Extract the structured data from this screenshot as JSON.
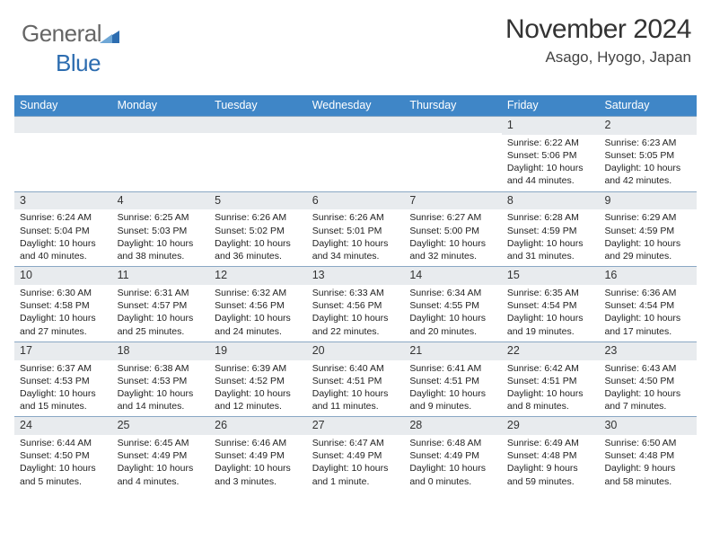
{
  "logo": {
    "text1": "General",
    "text2": "Blue"
  },
  "header": {
    "month_title": "November 2024",
    "location": "Asago, Hyogo, Japan"
  },
  "styles": {
    "header_bg": "#3f86c7",
    "daynum_bg": "#e8ebee",
    "border_color": "#8aa8c4",
    "title_fontsize": 30,
    "location_fontsize": 17,
    "weekday_fontsize": 12.5,
    "body_fontsize": 10.5
  },
  "weekdays": [
    "Sunday",
    "Monday",
    "Tuesday",
    "Wednesday",
    "Thursday",
    "Friday",
    "Saturday"
  ],
  "weeks": [
    [
      {
        "num": "",
        "sunrise": "",
        "sunset": "",
        "daylight": ""
      },
      {
        "num": "",
        "sunrise": "",
        "sunset": "",
        "daylight": ""
      },
      {
        "num": "",
        "sunrise": "",
        "sunset": "",
        "daylight": ""
      },
      {
        "num": "",
        "sunrise": "",
        "sunset": "",
        "daylight": ""
      },
      {
        "num": "",
        "sunrise": "",
        "sunset": "",
        "daylight": ""
      },
      {
        "num": "1",
        "sunrise": "Sunrise: 6:22 AM",
        "sunset": "Sunset: 5:06 PM",
        "daylight": "Daylight: 10 hours and 44 minutes."
      },
      {
        "num": "2",
        "sunrise": "Sunrise: 6:23 AM",
        "sunset": "Sunset: 5:05 PM",
        "daylight": "Daylight: 10 hours and 42 minutes."
      }
    ],
    [
      {
        "num": "3",
        "sunrise": "Sunrise: 6:24 AM",
        "sunset": "Sunset: 5:04 PM",
        "daylight": "Daylight: 10 hours and 40 minutes."
      },
      {
        "num": "4",
        "sunrise": "Sunrise: 6:25 AM",
        "sunset": "Sunset: 5:03 PM",
        "daylight": "Daylight: 10 hours and 38 minutes."
      },
      {
        "num": "5",
        "sunrise": "Sunrise: 6:26 AM",
        "sunset": "Sunset: 5:02 PM",
        "daylight": "Daylight: 10 hours and 36 minutes."
      },
      {
        "num": "6",
        "sunrise": "Sunrise: 6:26 AM",
        "sunset": "Sunset: 5:01 PM",
        "daylight": "Daylight: 10 hours and 34 minutes."
      },
      {
        "num": "7",
        "sunrise": "Sunrise: 6:27 AM",
        "sunset": "Sunset: 5:00 PM",
        "daylight": "Daylight: 10 hours and 32 minutes."
      },
      {
        "num": "8",
        "sunrise": "Sunrise: 6:28 AM",
        "sunset": "Sunset: 4:59 PM",
        "daylight": "Daylight: 10 hours and 31 minutes."
      },
      {
        "num": "9",
        "sunrise": "Sunrise: 6:29 AM",
        "sunset": "Sunset: 4:59 PM",
        "daylight": "Daylight: 10 hours and 29 minutes."
      }
    ],
    [
      {
        "num": "10",
        "sunrise": "Sunrise: 6:30 AM",
        "sunset": "Sunset: 4:58 PM",
        "daylight": "Daylight: 10 hours and 27 minutes."
      },
      {
        "num": "11",
        "sunrise": "Sunrise: 6:31 AM",
        "sunset": "Sunset: 4:57 PM",
        "daylight": "Daylight: 10 hours and 25 minutes."
      },
      {
        "num": "12",
        "sunrise": "Sunrise: 6:32 AM",
        "sunset": "Sunset: 4:56 PM",
        "daylight": "Daylight: 10 hours and 24 minutes."
      },
      {
        "num": "13",
        "sunrise": "Sunrise: 6:33 AM",
        "sunset": "Sunset: 4:56 PM",
        "daylight": "Daylight: 10 hours and 22 minutes."
      },
      {
        "num": "14",
        "sunrise": "Sunrise: 6:34 AM",
        "sunset": "Sunset: 4:55 PM",
        "daylight": "Daylight: 10 hours and 20 minutes."
      },
      {
        "num": "15",
        "sunrise": "Sunrise: 6:35 AM",
        "sunset": "Sunset: 4:54 PM",
        "daylight": "Daylight: 10 hours and 19 minutes."
      },
      {
        "num": "16",
        "sunrise": "Sunrise: 6:36 AM",
        "sunset": "Sunset: 4:54 PM",
        "daylight": "Daylight: 10 hours and 17 minutes."
      }
    ],
    [
      {
        "num": "17",
        "sunrise": "Sunrise: 6:37 AM",
        "sunset": "Sunset: 4:53 PM",
        "daylight": "Daylight: 10 hours and 15 minutes."
      },
      {
        "num": "18",
        "sunrise": "Sunrise: 6:38 AM",
        "sunset": "Sunset: 4:53 PM",
        "daylight": "Daylight: 10 hours and 14 minutes."
      },
      {
        "num": "19",
        "sunrise": "Sunrise: 6:39 AM",
        "sunset": "Sunset: 4:52 PM",
        "daylight": "Daylight: 10 hours and 12 minutes."
      },
      {
        "num": "20",
        "sunrise": "Sunrise: 6:40 AM",
        "sunset": "Sunset: 4:51 PM",
        "daylight": "Daylight: 10 hours and 11 minutes."
      },
      {
        "num": "21",
        "sunrise": "Sunrise: 6:41 AM",
        "sunset": "Sunset: 4:51 PM",
        "daylight": "Daylight: 10 hours and 9 minutes."
      },
      {
        "num": "22",
        "sunrise": "Sunrise: 6:42 AM",
        "sunset": "Sunset: 4:51 PM",
        "daylight": "Daylight: 10 hours and 8 minutes."
      },
      {
        "num": "23",
        "sunrise": "Sunrise: 6:43 AM",
        "sunset": "Sunset: 4:50 PM",
        "daylight": "Daylight: 10 hours and 7 minutes."
      }
    ],
    [
      {
        "num": "24",
        "sunrise": "Sunrise: 6:44 AM",
        "sunset": "Sunset: 4:50 PM",
        "daylight": "Daylight: 10 hours and 5 minutes."
      },
      {
        "num": "25",
        "sunrise": "Sunrise: 6:45 AM",
        "sunset": "Sunset: 4:49 PM",
        "daylight": "Daylight: 10 hours and 4 minutes."
      },
      {
        "num": "26",
        "sunrise": "Sunrise: 6:46 AM",
        "sunset": "Sunset: 4:49 PM",
        "daylight": "Daylight: 10 hours and 3 minutes."
      },
      {
        "num": "27",
        "sunrise": "Sunrise: 6:47 AM",
        "sunset": "Sunset: 4:49 PM",
        "daylight": "Daylight: 10 hours and 1 minute."
      },
      {
        "num": "28",
        "sunrise": "Sunrise: 6:48 AM",
        "sunset": "Sunset: 4:49 PM",
        "daylight": "Daylight: 10 hours and 0 minutes."
      },
      {
        "num": "29",
        "sunrise": "Sunrise: 6:49 AM",
        "sunset": "Sunset: 4:48 PM",
        "daylight": "Daylight: 9 hours and 59 minutes."
      },
      {
        "num": "30",
        "sunrise": "Sunrise: 6:50 AM",
        "sunset": "Sunset: 4:48 PM",
        "daylight": "Daylight: 9 hours and 58 minutes."
      }
    ]
  ]
}
